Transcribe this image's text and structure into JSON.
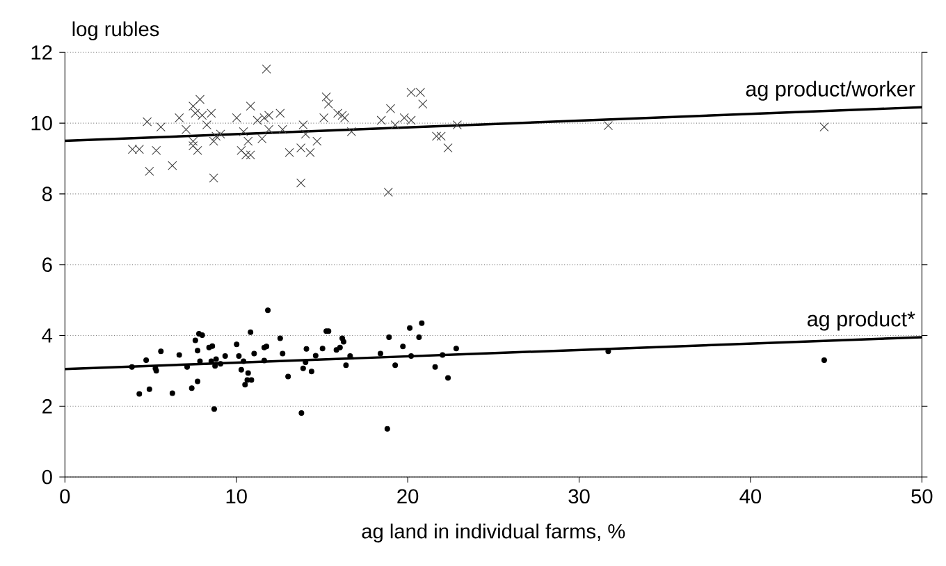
{
  "chart_data": {
    "type": "scatter",
    "xlabel": "ag land in individual farms, %",
    "ylabel": "log rubles",
    "xlim": [
      0,
      50
    ],
    "ylim": [
      0,
      12
    ],
    "xticks": [
      0,
      10,
      20,
      30,
      40,
      50
    ],
    "yticks": [
      0,
      2,
      4,
      6,
      8,
      10,
      12
    ],
    "grid": "y",
    "series": [
      {
        "marker": "cross",
        "color": "#404040",
        "x": [
          4.8,
          5.6,
          3.94,
          4.34,
          5.33,
          4.93,
          6.27,
          6.67,
          7.07,
          7.48,
          7.88,
          7.61,
          8.01,
          8.54,
          8.28,
          7.48,
          7.74,
          7.48,
          8.82,
          8.68,
          9.08,
          8.68,
          10.02,
          10.42,
          10.83,
          10.69,
          10.29,
          10.56,
          10.83,
          11.23,
          11.63,
          11.9,
          11.5,
          11.76,
          11.9,
          12.56,
          12.7,
          13.1,
          13.9,
          14.04,
          13.77,
          14.31,
          14.71,
          13.77,
          15.25,
          15.38,
          15.11,
          15.92,
          16.18,
          16.32,
          16.72,
          18.46,
          19.0,
          19.27,
          19.8,
          20.2,
          20.2,
          20.74,
          20.88,
          18.87,
          21.68,
          21.95,
          22.35,
          22.89,
          31.7,
          44.3
        ],
        "values": [
          10.04,
          9.89,
          9.26,
          9.26,
          9.23,
          8.64,
          8.8,
          10.15,
          9.82,
          10.48,
          10.67,
          10.28,
          10.22,
          10.28,
          9.95,
          9.49,
          9.23,
          9.36,
          9.63,
          9.49,
          9.69,
          8.45,
          10.15,
          9.76,
          10.48,
          9.49,
          9.23,
          9.1,
          9.1,
          10.08,
          10.15,
          10.22,
          9.56,
          11.53,
          9.82,
          10.28,
          9.82,
          9.17,
          9.95,
          9.69,
          9.3,
          9.17,
          9.49,
          8.31,
          10.74,
          10.54,
          10.15,
          10.28,
          10.22,
          10.15,
          9.76,
          10.08,
          10.41,
          9.95,
          10.15,
          10.08,
          10.87,
          10.87,
          10.54,
          8.05,
          9.63,
          9.63,
          9.3,
          9.95,
          9.93,
          9.89
        ]
      },
      {
        "marker": "circle",
        "color": "#000000",
        "x": [
          3.91,
          4.34,
          4.74,
          4.93,
          5.28,
          5.33,
          5.6,
          6.27,
          6.67,
          7.13,
          7.4,
          7.74,
          7.61,
          7.74,
          7.82,
          8.01,
          7.88,
          8.41,
          8.6,
          8.54,
          8.76,
          8.82,
          9.08,
          8.71,
          9.35,
          10.02,
          10.15,
          10.29,
          10.42,
          10.69,
          10.51,
          10.64,
          10.88,
          10.83,
          11.04,
          11.63,
          11.76,
          11.63,
          11.84,
          12.56,
          12.7,
          13.02,
          13.9,
          14.04,
          14.09,
          14.39,
          14.63,
          13.8,
          15.03,
          15.25,
          15.38,
          15.84,
          16.05,
          16.18,
          16.26,
          16.4,
          16.64,
          18.41,
          18.91,
          18.81,
          19.27,
          19.72,
          20.12,
          20.2,
          20.66,
          20.82,
          21.6,
          22.03,
          22.35,
          22.83,
          31.7,
          44.3
        ],
        "values": [
          3.11,
          2.35,
          3.3,
          2.48,
          3.07,
          3.0,
          3.55,
          2.37,
          3.45,
          3.11,
          2.51,
          2.7,
          3.86,
          3.57,
          4.05,
          4.01,
          3.27,
          3.66,
          3.7,
          3.27,
          3.14,
          3.33,
          3.2,
          1.92,
          3.42,
          3.75,
          3.42,
          3.03,
          3.27,
          2.94,
          2.61,
          2.74,
          2.74,
          4.09,
          3.49,
          3.66,
          3.69,
          3.29,
          4.71,
          3.92,
          3.49,
          2.84,
          3.07,
          3.24,
          3.62,
          2.98,
          3.43,
          1.81,
          3.63,
          4.12,
          4.12,
          3.59,
          3.66,
          3.92,
          3.82,
          3.16,
          3.42,
          3.49,
          3.95,
          1.36,
          3.16,
          3.69,
          4.21,
          3.42,
          3.95,
          4.35,
          3.11,
          3.45,
          2.8,
          3.63,
          3.55,
          3.3
        ]
      },
      {
        "type": "line",
        "name": "ag product/worker",
        "color": "#000000",
        "x": [
          0,
          50
        ],
        "values": [
          9.5,
          10.45
        ]
      },
      {
        "type": "line",
        "name": "ag product*",
        "color": "#000000",
        "x": [
          0,
          50
        ],
        "values": [
          3.05,
          3.95
        ]
      }
    ]
  }
}
